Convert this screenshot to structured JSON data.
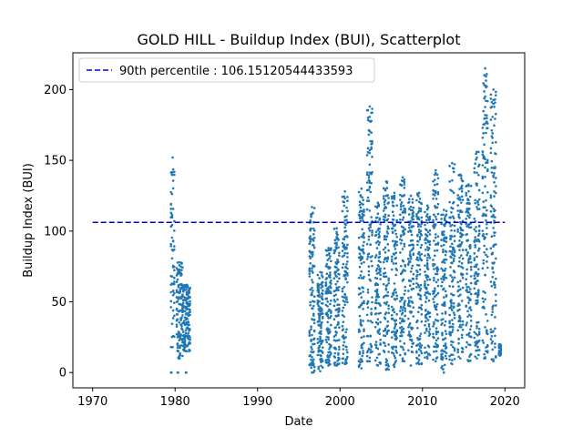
{
  "chart_data": {
    "type": "scatter",
    "title": "GOLD HILL - Buildup Index (BUI), Scatterplot",
    "xlabel": "Date",
    "ylabel": "Buildup Index (BUI)",
    "xlim": [
      1967.6,
      2022.4
    ],
    "ylim": [
      -10.8,
      226
    ],
    "x_ticks": [
      1970,
      1980,
      1990,
      2000,
      2010,
      2020
    ],
    "y_ticks": [
      0,
      50,
      100,
      150,
      200
    ],
    "series_color": "#1f77b4",
    "reference_line": {
      "label": "90th percentile : 106.15120544433593",
      "value": 106.15120544433593,
      "x_range": [
        1970,
        2020
      ],
      "color": "#0000cd",
      "style": "dashed"
    },
    "legend": {
      "position": "top-left"
    },
    "point_groups": [
      {
        "x_start": 1979.5,
        "x_end": 1979.9,
        "y_min": 18,
        "y_max": 152
      },
      {
        "x_start": 1979.5,
        "x_end": 1979.6,
        "y_min": 0,
        "y_max": 0
      },
      {
        "x_start": 1980.2,
        "x_end": 1980.9,
        "y_min": 10,
        "y_max": 78
      },
      {
        "x_start": 1980.3,
        "x_end": 1980.4,
        "y_min": 0,
        "y_max": 0
      },
      {
        "x_start": 1981.0,
        "x_end": 1981.8,
        "y_min": 15,
        "y_max": 62
      },
      {
        "x_start": 1981.3,
        "x_end": 1981.4,
        "y_min": 0,
        "y_max": 0
      },
      {
        "x_start": 1996.3,
        "x_end": 1996.9,
        "y_min": 0,
        "y_max": 117
      },
      {
        "x_start": 1997.3,
        "x_end": 1997.9,
        "y_min": 1,
        "y_max": 71
      },
      {
        "x_start": 1998.3,
        "x_end": 1998.9,
        "y_min": 5,
        "y_max": 88
      },
      {
        "x_start": 1999.3,
        "x_end": 1999.9,
        "y_min": 5,
        "y_max": 102
      },
      {
        "x_start": 2000.3,
        "x_end": 2000.9,
        "y_min": 6,
        "y_max": 128
      },
      {
        "x_start": 2002.3,
        "x_end": 2002.9,
        "y_min": 3,
        "y_max": 130
      },
      {
        "x_start": 2003.3,
        "x_end": 2003.9,
        "y_min": 8,
        "y_max": 188
      },
      {
        "x_start": 2004.3,
        "x_end": 2004.9,
        "y_min": 5,
        "y_max": 120
      },
      {
        "x_start": 2005.3,
        "x_end": 2005.9,
        "y_min": 2,
        "y_max": 135
      },
      {
        "x_start": 2006.3,
        "x_end": 2006.9,
        "y_min": 4,
        "y_max": 127
      },
      {
        "x_start": 2007.3,
        "x_end": 2007.9,
        "y_min": 8,
        "y_max": 138
      },
      {
        "x_start": 2008.3,
        "x_end": 2008.9,
        "y_min": 5,
        "y_max": 125
      },
      {
        "x_start": 2009.3,
        "x_end": 2009.9,
        "y_min": 6,
        "y_max": 127
      },
      {
        "x_start": 2010.3,
        "x_end": 2010.9,
        "y_min": 10,
        "y_max": 118
      },
      {
        "x_start": 2011.3,
        "x_end": 2011.9,
        "y_min": 8,
        "y_max": 143
      },
      {
        "x_start": 2012.3,
        "x_end": 2012.9,
        "y_min": 0,
        "y_max": 115
      },
      {
        "x_start": 2013.3,
        "x_end": 2013.9,
        "y_min": 6,
        "y_max": 148
      },
      {
        "x_start": 2014.3,
        "x_end": 2014.9,
        "y_min": 10,
        "y_max": 140
      },
      {
        "x_start": 2015.3,
        "x_end": 2015.9,
        "y_min": 8,
        "y_max": 133
      },
      {
        "x_start": 2016.3,
        "x_end": 2016.9,
        "y_min": 10,
        "y_max": 156
      },
      {
        "x_start": 2017.3,
        "x_end": 2017.9,
        "y_min": 10,
        "y_max": 215
      },
      {
        "x_start": 2018.3,
        "x_end": 2018.9,
        "y_min": 8,
        "y_max": 200
      },
      {
        "x_start": 2019.3,
        "x_end": 2019.5,
        "y_min": 12,
        "y_max": 20
      }
    ]
  }
}
